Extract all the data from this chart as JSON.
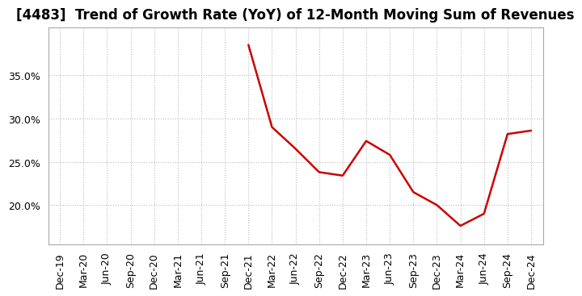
{
  "title": "[4483]  Trend of Growth Rate (YoY) of 12-Month Moving Sum of Revenues",
  "line_color": "#cc0000",
  "background_color": "#ffffff",
  "plot_bg_color": "#ffffff",
  "grid_color": "#bbbbbb",
  "x_labels": [
    "Dec-19",
    "Mar-20",
    "Jun-20",
    "Sep-20",
    "Dec-20",
    "Mar-21",
    "Jun-21",
    "Sep-21",
    "Dec-21",
    "Mar-22",
    "Jun-22",
    "Sep-22",
    "Dec-22",
    "Mar-23",
    "Jun-23",
    "Sep-23",
    "Dec-23",
    "Mar-24",
    "Jun-24",
    "Sep-24",
    "Dec-24"
  ],
  "x_values": [
    0,
    1,
    2,
    3,
    4,
    5,
    6,
    7,
    8,
    9,
    10,
    11,
    12,
    13,
    14,
    15,
    16,
    17,
    18,
    19,
    20
  ],
  "data_x": [
    8,
    9,
    10,
    11,
    12,
    13,
    14,
    15,
    16,
    17,
    18,
    19,
    20
  ],
  "data_y": [
    0.385,
    0.29,
    0.265,
    0.238,
    0.234,
    0.274,
    0.258,
    0.215,
    0.2,
    0.176,
    0.19,
    0.282,
    0.286
  ],
  "yticks": [
    0.2,
    0.25,
    0.3,
    0.35
  ],
  "ylim": [
    0.155,
    0.405
  ],
  "title_fontsize": 12,
  "tick_fontsize": 9,
  "line_width": 1.8
}
